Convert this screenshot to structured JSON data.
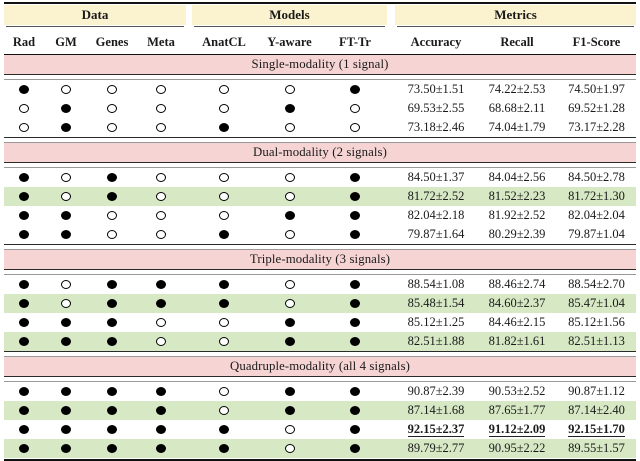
{
  "table": {
    "group_headers": [
      "Data",
      "Models",
      "Metrics"
    ],
    "columns": [
      "Rad",
      "GM",
      "Genes",
      "Meta",
      "AnatCL",
      "Y-aware",
      "FT-Tr",
      "Accuracy",
      "Recall",
      "F1-Score"
    ],
    "sections": [
      {
        "title": "Single-modality (1 signal)",
        "rows": [
          {
            "dots": [
              1,
              0,
              0,
              0,
              0,
              0,
              1
            ],
            "metrics": [
              "73.50±1.51",
              "74.22±2.53",
              "74.50±1.97"
            ],
            "highlight": false,
            "best": false
          },
          {
            "dots": [
              0,
              1,
              0,
              0,
              0,
              1,
              0
            ],
            "metrics": [
              "69.53±2.55",
              "68.68±2.11",
              "69.52±1.28"
            ],
            "highlight": false,
            "best": false
          },
          {
            "dots": [
              0,
              1,
              0,
              0,
              1,
              0,
              0
            ],
            "metrics": [
              "73.18±2.46",
              "74.04±1.79",
              "73.17±2.28"
            ],
            "highlight": false,
            "best": false
          }
        ]
      },
      {
        "title": "Dual-modality (2 signals)",
        "rows": [
          {
            "dots": [
              1,
              0,
              1,
              0,
              0,
              0,
              1
            ],
            "metrics": [
              "84.50±1.37",
              "84.04±2.56",
              "84.50±2.78"
            ],
            "highlight": false,
            "best": false
          },
          {
            "dots": [
              1,
              0,
              1,
              0,
              0,
              0,
              1
            ],
            "metrics": [
              "81.72±2.52",
              "81.52±2.23",
              "81.72±1.30"
            ],
            "highlight": true,
            "best": false
          },
          {
            "dots": [
              1,
              1,
              0,
              0,
              0,
              1,
              1
            ],
            "metrics": [
              "82.04±2.18",
              "81.92±2.52",
              "82.04±2.04"
            ],
            "highlight": false,
            "best": false
          },
          {
            "dots": [
              1,
              1,
              0,
              0,
              1,
              0,
              1
            ],
            "metrics": [
              "79.87±1.64",
              "80.29±2.39",
              "79.87±1.04"
            ],
            "highlight": false,
            "best": false
          }
        ]
      },
      {
        "title": "Triple-modality (3 signals)",
        "rows": [
          {
            "dots": [
              1,
              0,
              1,
              1,
              1,
              0,
              1
            ],
            "metrics": [
              "88.54±1.08",
              "88.46±2.74",
              "88.54±2.70"
            ],
            "highlight": false,
            "best": false
          },
          {
            "dots": [
              1,
              0,
              1,
              1,
              1,
              0,
              1
            ],
            "metrics": [
              "85.48±1.54",
              "84.60±2.37",
              "85.47±1.04"
            ],
            "highlight": true,
            "best": false
          },
          {
            "dots": [
              1,
              1,
              1,
              0,
              0,
              1,
              1
            ],
            "metrics": [
              "85.12±1.25",
              "84.46±2.15",
              "85.12±1.56"
            ],
            "highlight": false,
            "best": false
          },
          {
            "dots": [
              1,
              1,
              1,
              0,
              0,
              1,
              1
            ],
            "metrics": [
              "82.51±1.88",
              "81.82±1.61",
              "82.51±1.13"
            ],
            "highlight": true,
            "best": false
          }
        ]
      },
      {
        "title": "Quadruple-modality (all 4 signals)",
        "rows": [
          {
            "dots": [
              1,
              1,
              1,
              1,
              0,
              1,
              1
            ],
            "metrics": [
              "90.87±2.39",
              "90.53±2.52",
              "90.87±1.12"
            ],
            "highlight": false,
            "best": false
          },
          {
            "dots": [
              1,
              1,
              1,
              1,
              0,
              1,
              1
            ],
            "metrics": [
              "87.14±1.68",
              "87.65±1.77",
              "87.14±2.40"
            ],
            "highlight": true,
            "best": false
          },
          {
            "dots": [
              1,
              1,
              1,
              1,
              1,
              0,
              1
            ],
            "metrics": [
              "92.15±2.37",
              "91.12±2.09",
              "92.15±1.70"
            ],
            "highlight": false,
            "best": true
          },
          {
            "dots": [
              1,
              1,
              1,
              1,
              1,
              0,
              1
            ],
            "metrics": [
              "89.79±2.77",
              "90.95±2.22",
              "89.55±1.57"
            ],
            "highlight": true,
            "best": false
          }
        ]
      }
    ]
  },
  "colors": {
    "group_header_bg": "#fbf2cf",
    "section_band_bg": "#f7d4d4",
    "highlight_row_bg": "#d6e8c4",
    "rule_dark": "#111111"
  }
}
